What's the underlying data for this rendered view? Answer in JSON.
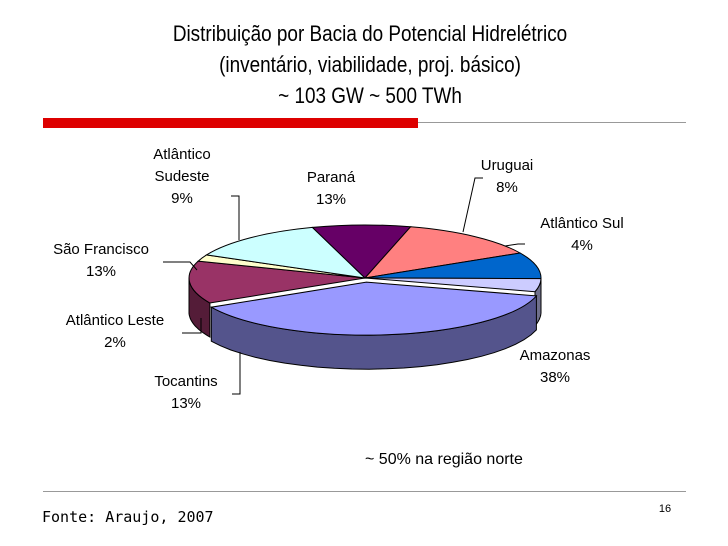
{
  "title": {
    "line1": "Distribuição por Bacia do Potencial Hidrelétrico",
    "line2": "(inventário, viabilidade, proj. básico)",
    "line3": "~ 103 GW ~ 500 TWh"
  },
  "note": "~ 50% na região norte",
  "source": "Fonte: Araujo, 2007",
  "page_number": "16",
  "chart_data": {
    "type": "pie",
    "style": "3d-exploded",
    "title": "",
    "slices": [
      {
        "name": "Amazonas",
        "percent_label": "38%",
        "value": 38,
        "color": "#9999ff"
      },
      {
        "name": "Tocantins",
        "percent_label": "13%",
        "value": 13,
        "color": "#993366"
      },
      {
        "name": "Atlântico Leste",
        "percent_label": "2%",
        "value": 2,
        "color": "#ffffcc"
      },
      {
        "name": "São Francisco",
        "percent_label": "13%",
        "value": 13,
        "color": "#ccffff"
      },
      {
        "name": "Atlântico Sudeste",
        "line1": "Atlântico",
        "line2": "Sudeste",
        "percent_label": "9%",
        "value": 9,
        "color": "#660066"
      },
      {
        "name": "Paraná",
        "percent_label": "13%",
        "value": 13,
        "color": "#ff8080"
      },
      {
        "name": "Uruguai",
        "percent_label": "8%",
        "value": 8,
        "color": "#0066cc"
      },
      {
        "name": "Atlântico Sul",
        "percent_label": "4%",
        "value": 4,
        "color": "#ccccff"
      }
    ]
  }
}
